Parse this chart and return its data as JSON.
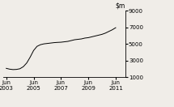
{
  "ylim": [
    1000,
    9000
  ],
  "yticks": [
    1000,
    3000,
    5000,
    7000,
    9000
  ],
  "xtick_labels": [
    "Jun\n2003",
    "Jun\n2005",
    "Jun\n2007",
    "Jun\n2009",
    "Jun\n2011"
  ],
  "xtick_positions": [
    2003.5,
    2005.5,
    2007.5,
    2009.5,
    2011.5
  ],
  "line_color": "#000000",
  "bg_color": "#f0ede8",
  "xlim": [
    2003.3,
    2012.2
  ],
  "x": [
    2003.5,
    2003.75,
    2004.0,
    2004.25,
    2004.5,
    2004.75,
    2005.0,
    2005.25,
    2005.5,
    2005.75,
    2006.0,
    2006.25,
    2006.5,
    2006.75,
    2007.0,
    2007.25,
    2007.5,
    2007.75,
    2008.0,
    2008.25,
    2008.5,
    2008.75,
    2009.0,
    2009.25,
    2009.5,
    2009.75,
    2010.0,
    2010.25,
    2010.5,
    2010.75,
    2011.0,
    2011.25,
    2011.5
  ],
  "y": [
    2050,
    1950,
    1900,
    1920,
    2000,
    2250,
    2700,
    3400,
    4200,
    4700,
    4900,
    5000,
    5050,
    5100,
    5150,
    5180,
    5200,
    5250,
    5300,
    5400,
    5500,
    5550,
    5600,
    5700,
    5750,
    5850,
    5950,
    6050,
    6150,
    6300,
    6500,
    6700,
    6950
  ]
}
